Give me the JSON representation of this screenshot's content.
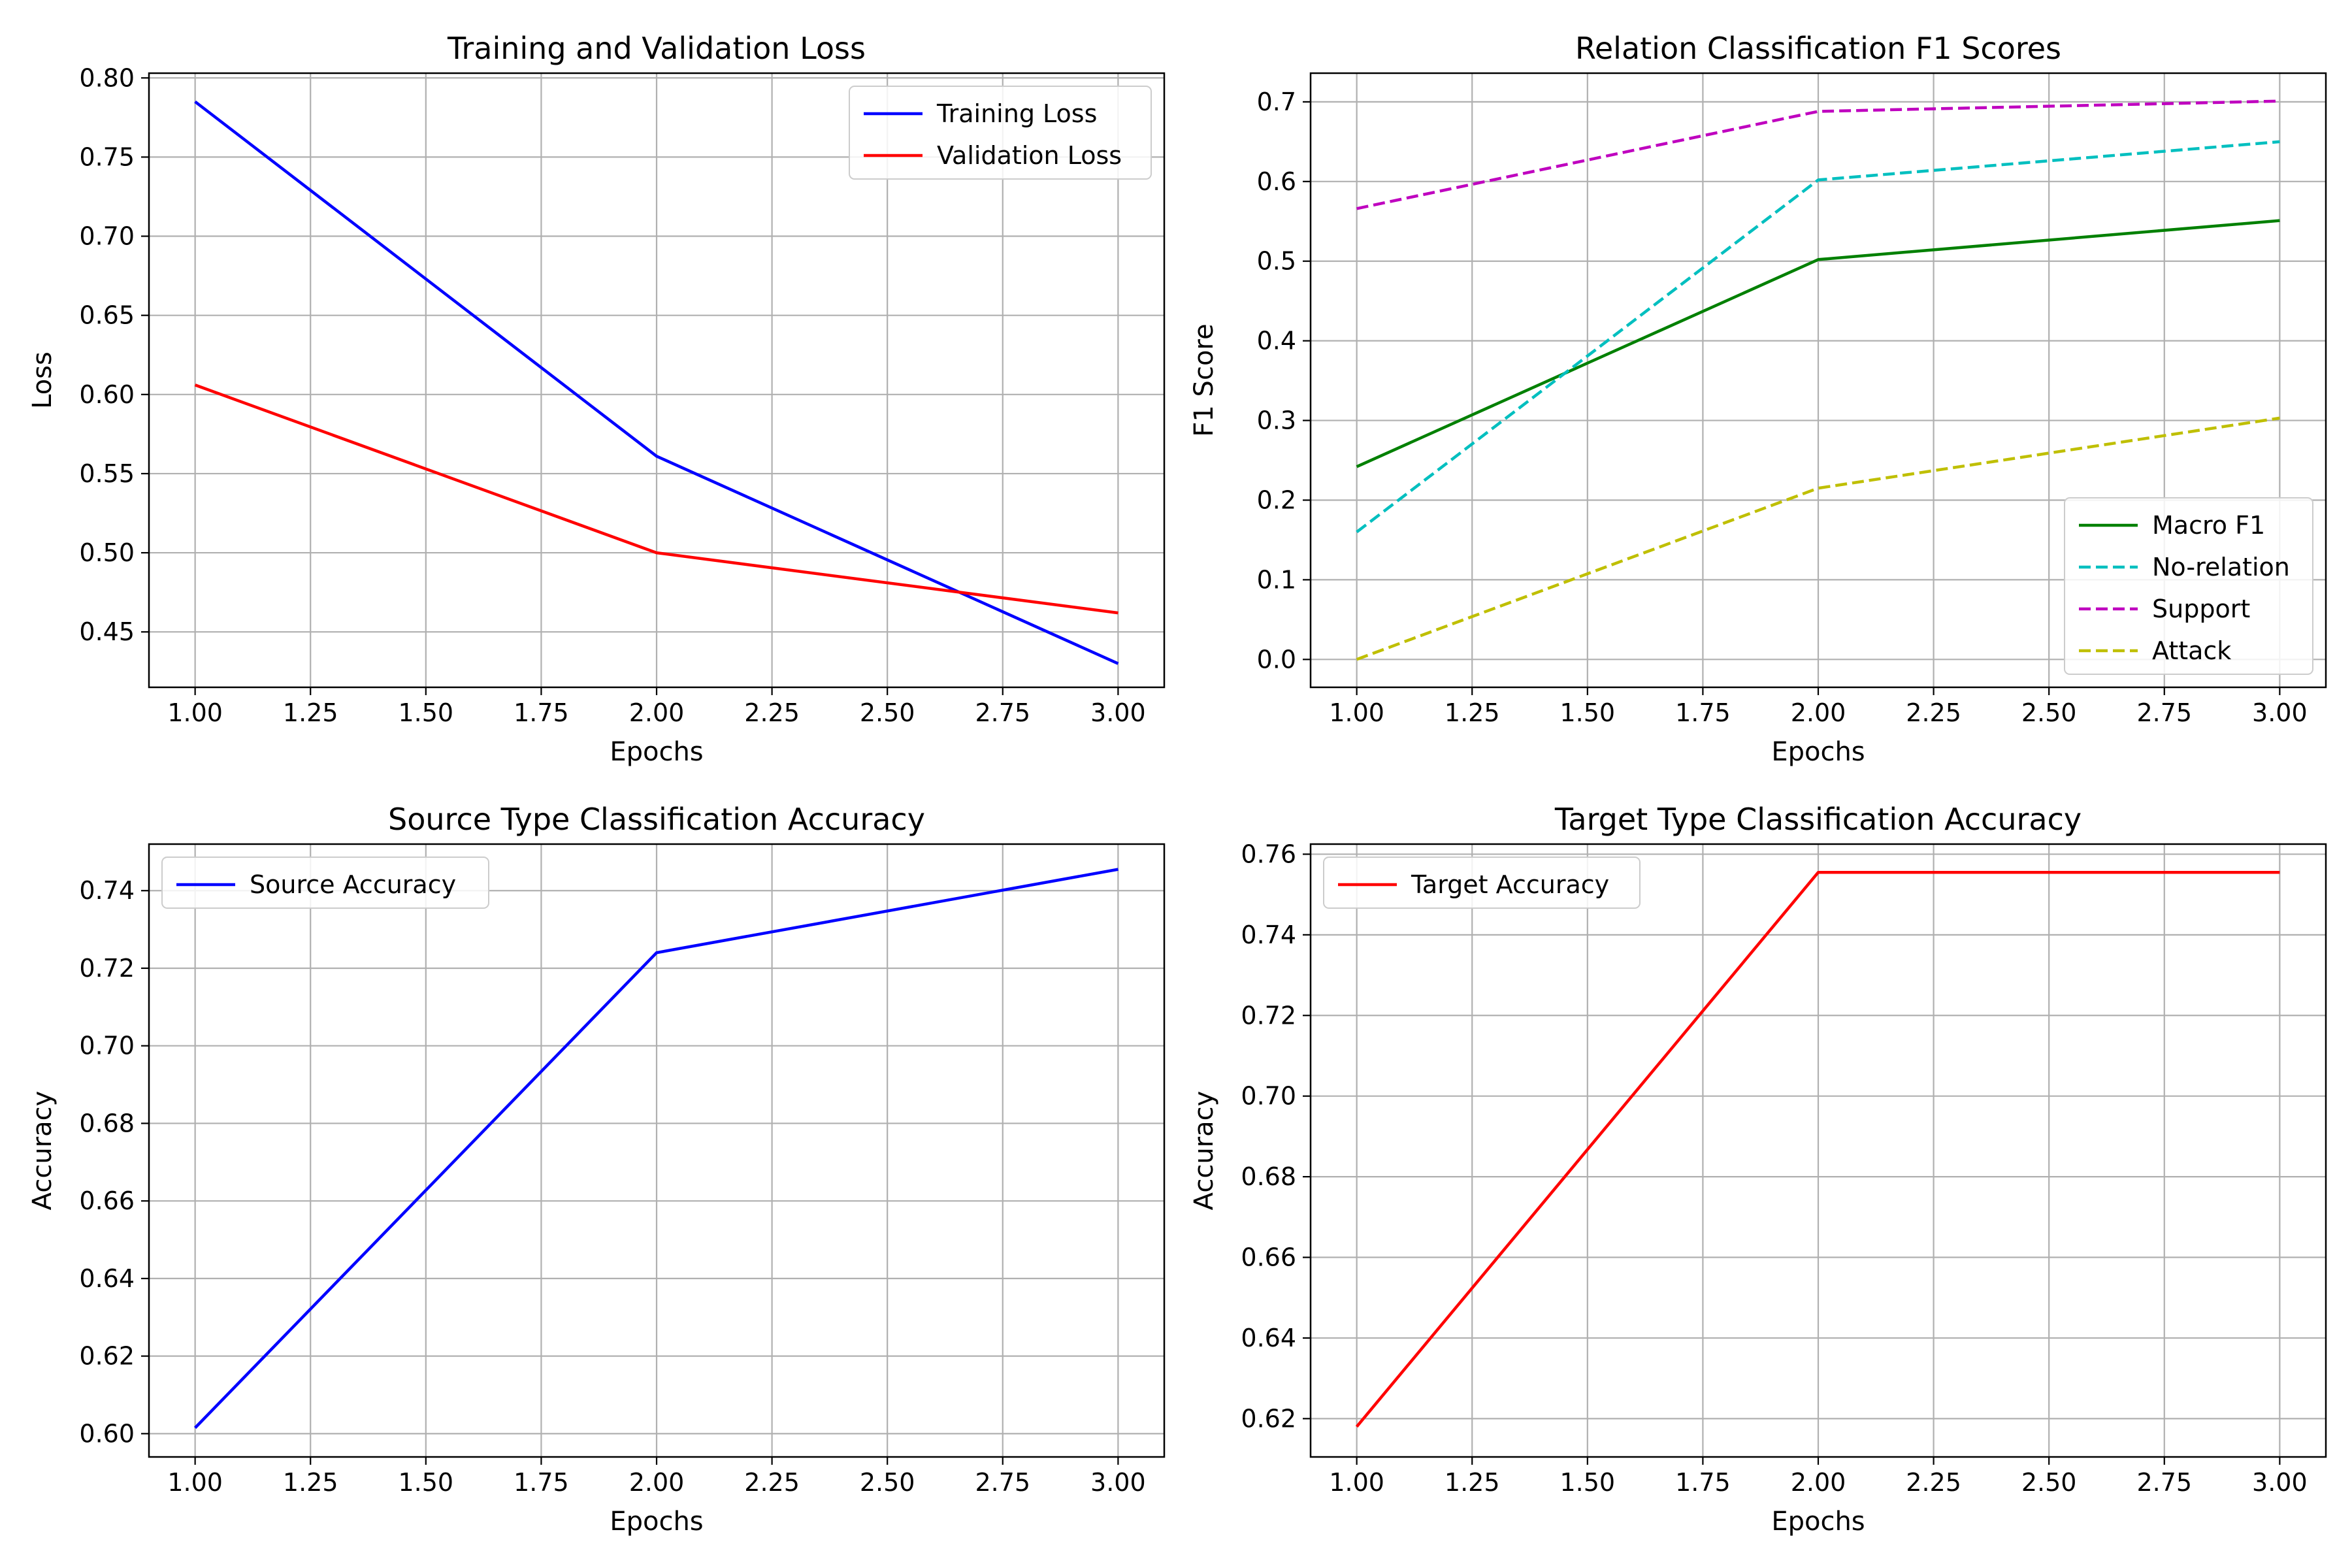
{
  "figure": {
    "background": "#ffffff",
    "grid_color": "#b0b0b0"
  },
  "chart_data": [
    {
      "id": "loss",
      "type": "line",
      "title": "Training and Validation Loss",
      "xlabel": "Epochs",
      "ylabel": "Loss",
      "xlim": [
        0.9,
        3.1
      ],
      "ylim": [
        0.415,
        0.803
      ],
      "xticks": [
        1.0,
        1.25,
        1.5,
        1.75,
        2.0,
        2.25,
        2.5,
        2.75,
        3.0
      ],
      "xtick_labels": [
        "1.00",
        "1.25",
        "1.50",
        "1.75",
        "2.00",
        "2.25",
        "2.50",
        "2.75",
        "3.00"
      ],
      "yticks": [
        0.45,
        0.5,
        0.55,
        0.6,
        0.65,
        0.7,
        0.75,
        0.8
      ],
      "ytick_labels": [
        "0.45",
        "0.50",
        "0.55",
        "0.60",
        "0.65",
        "0.70",
        "0.75",
        "0.80"
      ],
      "grid": true,
      "legend_position": "top-right",
      "x": [
        1,
        2,
        3
      ],
      "series": [
        {
          "name": "Training Loss",
          "color": "#0000ff",
          "dash": "solid",
          "values": [
            0.785,
            0.561,
            0.43
          ]
        },
        {
          "name": "Validation Loss",
          "color": "#ff0000",
          "dash": "solid",
          "values": [
            0.606,
            0.5,
            0.462
          ]
        }
      ]
    },
    {
      "id": "f1",
      "type": "line",
      "title": "Relation Classification F1 Scores",
      "xlabel": "Epochs",
      "ylabel": "F1 Score",
      "xlim": [
        0.9,
        3.1
      ],
      "ylim": [
        -0.035,
        0.736
      ],
      "xticks": [
        1.0,
        1.25,
        1.5,
        1.75,
        2.0,
        2.25,
        2.5,
        2.75,
        3.0
      ],
      "xtick_labels": [
        "1.00",
        "1.25",
        "1.50",
        "1.75",
        "2.00",
        "2.25",
        "2.50",
        "2.75",
        "3.00"
      ],
      "yticks": [
        0.0,
        0.1,
        0.2,
        0.3,
        0.4,
        0.5,
        0.6,
        0.7
      ],
      "ytick_labels": [
        "0.0",
        "0.1",
        "0.2",
        "0.3",
        "0.4",
        "0.5",
        "0.6",
        "0.7"
      ],
      "grid": true,
      "legend_position": "lower-right",
      "x": [
        1,
        2,
        3
      ],
      "series": [
        {
          "name": "Macro F1",
          "color": "#008000",
          "dash": "solid",
          "values": [
            0.242,
            0.502,
            0.551
          ]
        },
        {
          "name": "No-relation",
          "color": "#00bfbf",
          "dash": "dashed",
          "values": [
            0.16,
            0.602,
            0.65
          ]
        },
        {
          "name": "Support",
          "color": "#bf00bf",
          "dash": "dashed",
          "values": [
            0.566,
            0.688,
            0.701
          ]
        },
        {
          "name": "Attack",
          "color": "#bfbf00",
          "dash": "dashed",
          "values": [
            0.0,
            0.215,
            0.303
          ]
        }
      ]
    },
    {
      "id": "source",
      "type": "line",
      "title": "Source Type Classification Accuracy",
      "xlabel": "Epochs",
      "ylabel": "Accuracy",
      "xlim": [
        0.9,
        3.1
      ],
      "ylim": [
        0.594,
        0.752
      ],
      "xticks": [
        1.0,
        1.25,
        1.5,
        1.75,
        2.0,
        2.25,
        2.5,
        2.75,
        3.0
      ],
      "xtick_labels": [
        "1.00",
        "1.25",
        "1.50",
        "1.75",
        "2.00",
        "2.25",
        "2.50",
        "2.75",
        "3.00"
      ],
      "yticks": [
        0.6,
        0.62,
        0.64,
        0.66,
        0.68,
        0.7,
        0.72,
        0.74
      ],
      "ytick_labels": [
        "0.60",
        "0.62",
        "0.64",
        "0.66",
        "0.68",
        "0.70",
        "0.72",
        "0.74"
      ],
      "grid": true,
      "legend_position": "top-left",
      "x": [
        1,
        2,
        3
      ],
      "series": [
        {
          "name": "Source Accuracy",
          "color": "#0000ff",
          "dash": "solid",
          "values": [
            0.6015,
            0.724,
            0.7455
          ]
        }
      ]
    },
    {
      "id": "target",
      "type": "line",
      "title": "Target Type Classification Accuracy",
      "xlabel": "Epochs",
      "ylabel": "Accuracy",
      "xlim": [
        0.9,
        3.1
      ],
      "ylim": [
        0.6105,
        0.7625
      ],
      "xticks": [
        1.0,
        1.25,
        1.5,
        1.75,
        2.0,
        2.25,
        2.5,
        2.75,
        3.0
      ],
      "xtick_labels": [
        "1.00",
        "1.25",
        "1.50",
        "1.75",
        "2.00",
        "2.25",
        "2.50",
        "2.75",
        "3.00"
      ],
      "yticks": [
        0.62,
        0.64,
        0.66,
        0.68,
        0.7,
        0.72,
        0.74,
        0.76
      ],
      "ytick_labels": [
        "0.62",
        "0.64",
        "0.66",
        "0.68",
        "0.70",
        "0.72",
        "0.74",
        "0.76"
      ],
      "grid": true,
      "legend_position": "top-left",
      "x": [
        1,
        2,
        3
      ],
      "series": [
        {
          "name": "Target Accuracy",
          "color": "#ff0000",
          "dash": "solid",
          "values": [
            0.618,
            0.7555,
            0.7555
          ]
        }
      ]
    }
  ]
}
